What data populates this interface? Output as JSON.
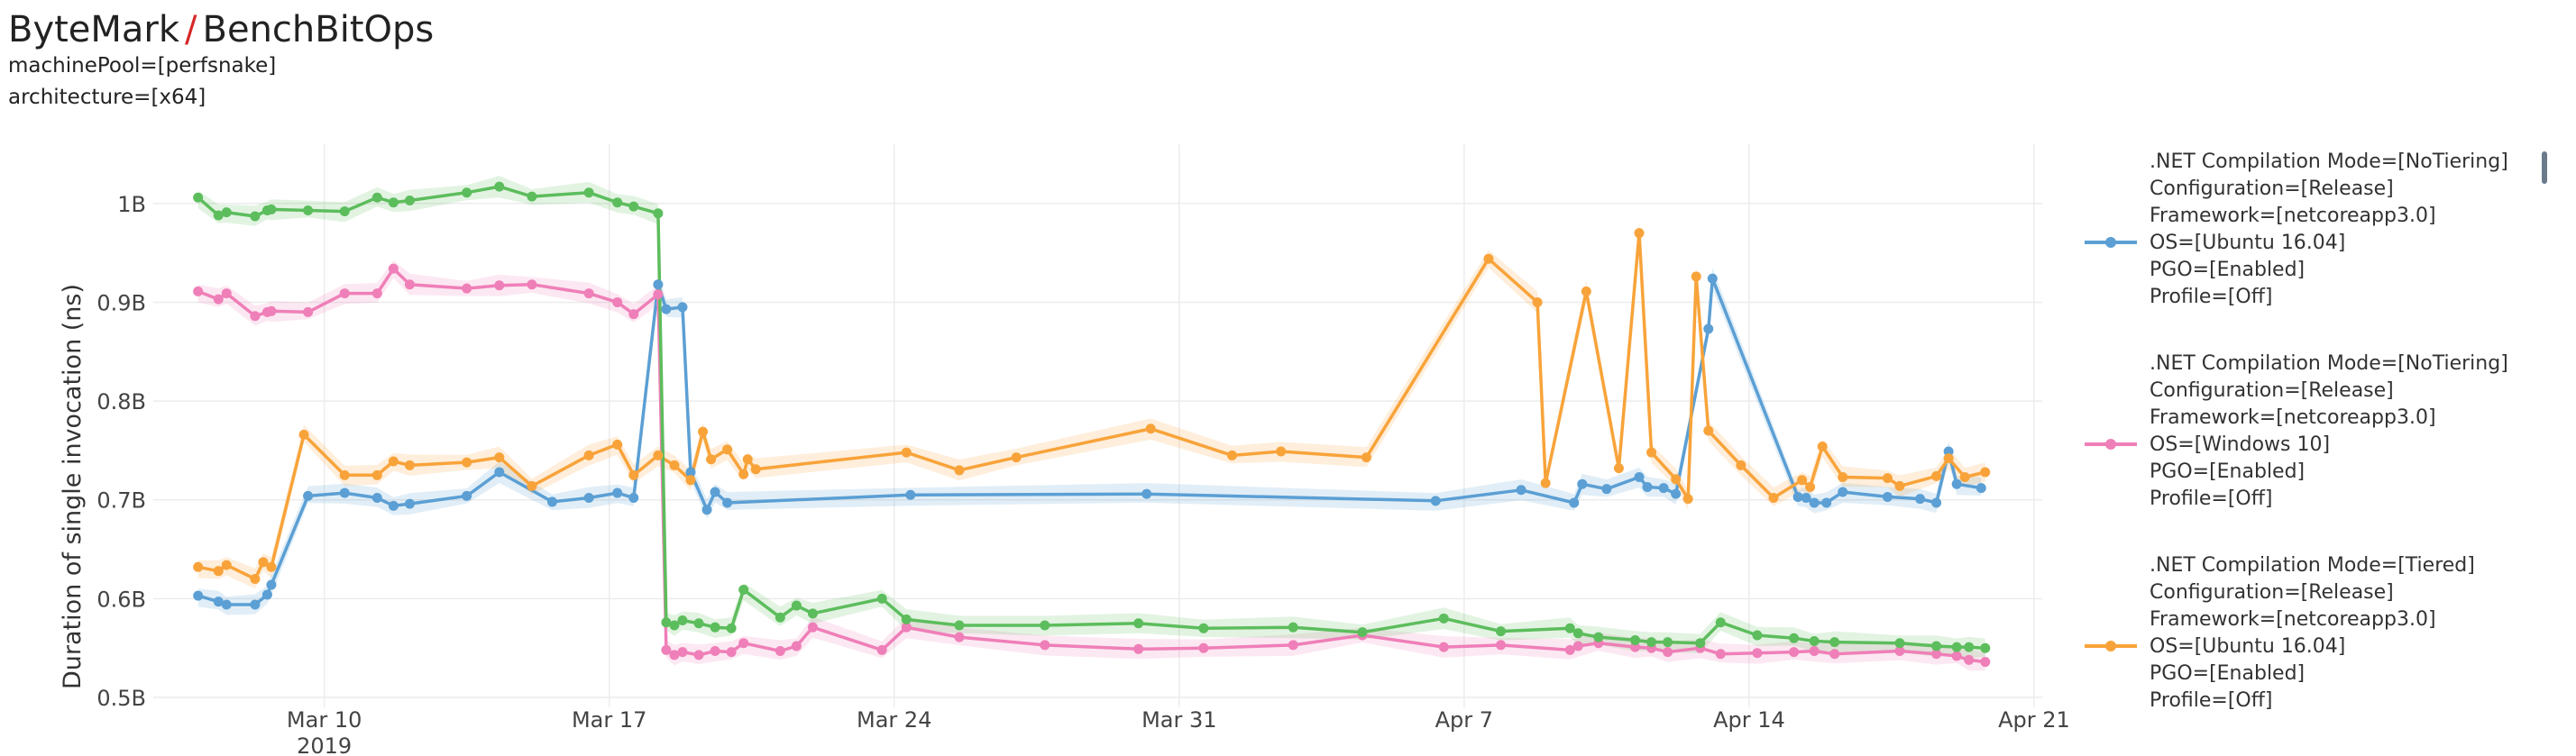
{
  "header": {
    "app": "ByteMark",
    "separator": "/",
    "benchmark": "BenchBitOps",
    "filters": [
      "machinePool=[perfsnake]",
      "architecture=[x64]"
    ]
  },
  "colors": {
    "accent_separator": "#d62728",
    "series_ubuntu_notiering": "#5b9fd4",
    "series_windows_notiering": "#ef7fb8",
    "series_ubuntu_tiered": "#f8a33a",
    "series_green": "#5cbd5c"
  },
  "chart_data": {
    "type": "line",
    "title": "",
    "xlabel": "",
    "ylabel": "Duration of single invocation (ns)",
    "x_unit": "days since Mar 3, 2019",
    "xlim": [
      2.8,
      49.2
    ],
    "ylim": [
      0.49,
      1.06
    ],
    "yticks": [
      0.5,
      0.6,
      0.7,
      0.8,
      0.9,
      1.0
    ],
    "ytick_labels": [
      "0.5B",
      "0.6B",
      "0.7B",
      "0.8B",
      "0.9B",
      "1B"
    ],
    "xticks": [
      7,
      14,
      21,
      28,
      35,
      42,
      49
    ],
    "xtick_labels": [
      "Mar 10",
      "Mar 17",
      "Mar 24",
      "Mar 31",
      "Apr 7",
      "Apr 14",
      "Apr 21"
    ],
    "xtick_sublabel": "2019",
    "grid": true,
    "legend_position": "right",
    "series": [
      {
        "name": ".NET Compilation Mode=[NoTiering] Configuration=[Release] Framework=[netcoreapp3.0] OS=[Ubuntu 16.04] PGO=[Enabled] Profile=[Off]",
        "legend_lines": [
          ".NET Compilation Mode=[NoTiering]",
          "Configuration=[Release]",
          "Framework=[netcoreapp3.0]",
          "OS=[Ubuntu 16.04]",
          "PGO=[Enabled]",
          "Profile=[Off]"
        ],
        "color": "#5b9fd4",
        "x": [
          3.9,
          4.4,
          4.6,
          5.3,
          5.6,
          5.7,
          6.6,
          7.5,
          8.3,
          8.7,
          9.1,
          10.5,
          11.3,
          12.6,
          13.5,
          14.2,
          14.6,
          15.2,
          15.4,
          15.8,
          16.0,
          16.4,
          16.6,
          16.9,
          21.4,
          27.2,
          34.3,
          36.4,
          37.7,
          37.9,
          38.5,
          39.3,
          39.5,
          39.9,
          40.2,
          41.0,
          41.1,
          43.2,
          43.4,
          43.6,
          43.9,
          44.3,
          45.4,
          46.2,
          46.6,
          46.9,
          47.1,
          47.7
        ],
        "y": [
          0.603,
          0.597,
          0.594,
          0.594,
          0.604,
          0.614,
          0.704,
          0.707,
          0.702,
          0.694,
          0.696,
          0.704,
          0.728,
          0.698,
          0.702,
          0.707,
          0.702,
          0.918,
          0.893,
          0.895,
          0.728,
          0.69,
          0.708,
          0.697,
          0.705,
          0.706,
          0.699,
          0.71,
          0.697,
          0.716,
          0.711,
          0.723,
          0.713,
          0.712,
          0.706,
          0.873,
          0.924,
          0.703,
          0.702,
          0.697,
          0.697,
          0.708,
          0.703,
          0.701,
          0.697,
          0.749,
          0.716,
          0.712
        ]
      },
      {
        "name": ".NET Compilation Mode=[NoTiering] Configuration=[Release] Framework=[netcoreapp3.0] OS=[Windows 10] PGO=[Enabled] Profile=[Off]",
        "legend_lines": [
          ".NET Compilation Mode=[NoTiering]",
          "Configuration=[Release]",
          "Framework=[netcoreapp3.0]",
          "OS=[Windows 10]",
          "PGO=[Enabled]",
          "Profile=[Off]"
        ],
        "color": "#ef7fb8",
        "x": [
          3.9,
          4.4,
          4.6,
          5.3,
          5.6,
          5.7,
          6.6,
          7.5,
          8.3,
          8.7,
          9.1,
          10.5,
          11.3,
          12.1,
          13.5,
          14.2,
          14.6,
          15.2,
          15.4,
          15.6,
          15.8,
          16.2,
          16.6,
          17.0,
          17.3,
          18.2,
          18.6,
          19.0,
          20.7,
          21.3,
          22.6,
          24.7,
          27.0,
          28.6,
          30.8,
          32.5,
          34.5,
          35.9,
          37.6,
          37.8,
          38.3,
          39.2,
          39.6,
          40.0,
          40.8,
          41.3,
          42.2,
          43.1,
          43.6,
          44.1,
          45.7,
          46.6,
          47.1,
          47.4,
          47.8
        ],
        "y": [
          0.911,
          0.903,
          0.909,
          0.886,
          0.89,
          0.891,
          0.89,
          0.909,
          0.909,
          0.934,
          0.918,
          0.914,
          0.917,
          0.918,
          0.909,
          0.9,
          0.888,
          0.908,
          0.548,
          0.543,
          0.546,
          0.543,
          0.547,
          0.546,
          0.555,
          0.547,
          0.552,
          0.571,
          0.548,
          0.571,
          0.561,
          0.553,
          0.549,
          0.55,
          0.553,
          0.563,
          0.551,
          0.553,
          0.548,
          0.552,
          0.555,
          0.551,
          0.55,
          0.546,
          0.55,
          0.544,
          0.545,
          0.546,
          0.547,
          0.544,
          0.547,
          0.544,
          0.542,
          0.538,
          0.536
        ]
      },
      {
        "name": ".NET Compilation Mode=[Tiered] Configuration=[Release] Framework=[netcoreapp3.0] OS=[Ubuntu 16.04] PGO=[Enabled] Profile=[Off]",
        "legend_lines": [
          ".NET Compilation Mode=[Tiered]",
          "Configuration=[Release]",
          "Framework=[netcoreapp3.0]",
          "OS=[Ubuntu 16.04]",
          "PGO=[Enabled]",
          "Profile=[Off]"
        ],
        "color": "#f8a33a",
        "x": [
          3.9,
          4.4,
          4.6,
          5.3,
          5.5,
          5.7,
          6.5,
          7.5,
          8.3,
          8.7,
          9.1,
          10.5,
          11.3,
          12.1,
          13.5,
          14.2,
          14.6,
          15.2,
          15.6,
          16.0,
          16.3,
          16.5,
          16.9,
          17.3,
          17.4,
          17.6,
          21.3,
          22.6,
          24.0,
          27.3,
          29.3,
          30.5,
          32.6,
          35.6,
          36.8,
          37.0,
          38.0,
          38.8,
          39.3,
          39.6,
          40.2,
          40.5,
          40.7,
          41.0,
          41.8,
          42.6,
          43.3,
          43.5,
          43.8,
          44.3,
          45.4,
          45.7,
          46.6,
          46.9,
          47.3,
          47.8
        ],
        "y": [
          0.632,
          0.628,
          0.634,
          0.62,
          0.637,
          0.632,
          0.766,
          0.725,
          0.725,
          0.739,
          0.735,
          0.738,
          0.743,
          0.714,
          0.745,
          0.756,
          0.725,
          0.745,
          0.735,
          0.72,
          0.769,
          0.741,
          0.751,
          0.726,
          0.741,
          0.731,
          0.748,
          0.73,
          0.743,
          0.772,
          0.745,
          0.749,
          0.743,
          0.944,
          0.9,
          0.717,
          0.911,
          0.732,
          0.97,
          0.748,
          0.721,
          0.701,
          0.926,
          0.77,
          0.735,
          0.702,
          0.72,
          0.713,
          0.754,
          0.723,
          0.722,
          0.714,
          0.724,
          0.742,
          0.723,
          0.728
        ]
      },
      {
        "name": "green series (legend entry not visible)",
        "legend_lines": [],
        "color": "#5cbd5c",
        "x": [
          3.9,
          4.4,
          4.6,
          5.3,
          5.6,
          5.7,
          6.6,
          7.5,
          8.3,
          8.7,
          9.1,
          10.5,
          11.3,
          12.1,
          13.5,
          14.2,
          14.6,
          15.2,
          15.4,
          15.6,
          15.8,
          16.2,
          16.6,
          17.0,
          17.3,
          18.2,
          18.6,
          19.0,
          20.7,
          21.3,
          22.6,
          24.7,
          27.0,
          28.6,
          30.8,
          32.5,
          34.5,
          35.9,
          37.6,
          37.8,
          38.3,
          39.2,
          39.6,
          40.0,
          40.8,
          41.3,
          42.2,
          43.1,
          43.6,
          44.1,
          45.7,
          46.6,
          47.1,
          47.4,
          47.8
        ],
        "y": [
          1.006,
          0.988,
          0.991,
          0.987,
          0.993,
          0.994,
          0.993,
          0.992,
          1.006,
          1.001,
          1.003,
          1.011,
          1.017,
          1.007,
          1.011,
          1.001,
          0.997,
          0.99,
          0.576,
          0.573,
          0.578,
          0.575,
          0.571,
          0.57,
          0.609,
          0.581,
          0.593,
          0.585,
          0.6,
          0.579,
          0.573,
          0.573,
          0.575,
          0.57,
          0.571,
          0.566,
          0.58,
          0.567,
          0.57,
          0.565,
          0.561,
          0.558,
          0.556,
          0.556,
          0.555,
          0.576,
          0.563,
          0.56,
          0.557,
          0.556,
          0.555,
          0.552,
          0.551,
          0.551,
          0.55
        ]
      }
    ]
  }
}
